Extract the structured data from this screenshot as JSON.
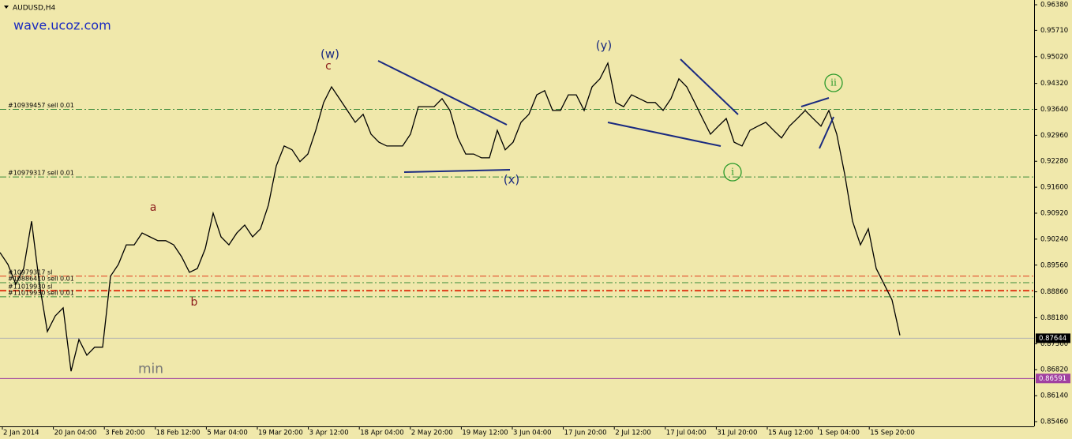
{
  "window": {
    "title": "AUDUSD,H4",
    "watermark": "wave.ucoz.com"
  },
  "chart_data": {
    "type": "line",
    "color": "#000000",
    "values": [
      0.8989,
      0.8958,
      0.8906,
      0.8947,
      0.9071,
      0.8906,
      0.8782,
      0.8823,
      0.8844,
      0.8678,
      0.8761,
      0.872,
      0.8741,
      0.8741,
      0.8927,
      0.8958,
      0.9009,
      0.9009,
      0.904,
      0.903,
      0.902,
      0.902,
      0.9009,
      0.8978,
      0.8937,
      0.8947,
      0.8999,
      0.9092,
      0.903,
      0.9009,
      0.904,
      0.9061,
      0.903,
      0.9051,
      0.9113,
      0.9216,
      0.9268,
      0.9258,
      0.9227,
      0.9247,
      0.9309,
      0.9382,
      0.9423,
      0.9392,
      0.9361,
      0.933,
      0.9351,
      0.9299,
      0.9278,
      0.9268,
      0.9268,
      0.9268,
      0.9299,
      0.9371,
      0.9371,
      0.9371,
      0.9392,
      0.9361,
      0.9289,
      0.9247,
      0.9247,
      0.9237,
      0.9237,
      0.9309,
      0.9258,
      0.9278,
      0.933,
      0.9351,
      0.9402,
      0.9413,
      0.9361,
      0.9361,
      0.9402,
      0.9402,
      0.9361,
      0.9423,
      0.9444,
      0.9485,
      0.9382,
      0.9371,
      0.9402,
      0.9392,
      0.9382,
      0.9382,
      0.9361,
      0.9392,
      0.9444,
      0.9423,
      0.9382,
      0.934,
      0.9299,
      0.932,
      0.934,
      0.9278,
      0.9268,
      0.9309,
      0.932,
      0.933,
      0.9309,
      0.9289,
      0.932,
      0.934,
      0.9361,
      0.934,
      0.932,
      0.9361,
      0.9299,
      0.9195,
      0.9071,
      0.9009,
      0.9051,
      0.8947,
      0.8906,
      0.8865,
      0.8772
    ],
    "ylim": [
      0.8546,
      0.9638
    ],
    "yticks": [
      {
        "value": 0.9638,
        "label": "0.96380"
      },
      {
        "value": 0.9571,
        "label": "0.95710"
      },
      {
        "value": 0.9502,
        "label": "0.95020"
      },
      {
        "value": 0.9432,
        "label": "0.94320"
      },
      {
        "value": 0.9364,
        "label": "0.93640"
      },
      {
        "value": 0.9296,
        "label": "0.92960"
      },
      {
        "value": 0.9228,
        "label": "0.92280"
      },
      {
        "value": 0.916,
        "label": "0.91600"
      },
      {
        "value": 0.9092,
        "label": "0.90920"
      },
      {
        "value": 0.9024,
        "label": "0.90240"
      },
      {
        "value": 0.8956,
        "label": "0.89560"
      },
      {
        "value": 0.8886,
        "label": "0.88860"
      },
      {
        "value": 0.8818,
        "label": "0.88180"
      },
      {
        "value": 0.875,
        "label": "0.87500"
      },
      {
        "value": 0.8682,
        "label": "0.86820"
      },
      {
        "value": 0.8614,
        "label": "0.86140"
      },
      {
        "value": 0.8546,
        "label": "0.85460"
      }
    ],
    "xtick_labels": [
      "2 Jan 2014",
      "20 Jan 04:00",
      "3 Feb 20:00",
      "18 Feb 12:00",
      "5 Mar 04:00",
      "19 Mar 20:00",
      "3 Apr 12:00",
      "18 Apr 04:00",
      "2 May 20:00",
      "19 May 12:00",
      "3 Jun 04:00",
      "17 Jun 20:00",
      "2 Jul 12:00",
      "17 Jul 04:00",
      "31 Jul 20:00",
      "15 Aug 12:00",
      "1 Sep 04:00",
      "15 Sep 20:00"
    ],
    "levels": [
      {
        "label": "#10939457 sell 0.01",
        "value": 0.9364,
        "color": "#3a8a3a"
      },
      {
        "label": "#10979317 sell 0.01",
        "value": 0.9187,
        "color": "#3a8a3a"
      },
      {
        "label": "#10979317 sl",
        "value": 0.8927,
        "color": "#e03a1a"
      },
      {
        "label": "#10886410 sell 0.01",
        "value": 0.891,
        "color": "#3a8a3a"
      },
      {
        "label": "#11019930 sl",
        "value": 0.8889,
        "color": "#e03a1a"
      },
      {
        "label": "#11019930 sell 0.01",
        "value": 0.8873,
        "color": "#3a8a3a"
      }
    ],
    "current_price": {
      "value": 0.87644,
      "label": "0.87644",
      "color": "#000000"
    },
    "min_price": {
      "value": 0.86591,
      "label": "0.86591",
      "text": "min",
      "color": "#a040a0"
    },
    "annotations": [
      {
        "text": "(w)",
        "color": "#1a2a80"
      },
      {
        "text": "c",
        "color": "#8b1a1a"
      },
      {
        "text": "(y)",
        "color": "#1a2a80"
      },
      {
        "text": "(x)",
        "color": "#1a2a80"
      },
      {
        "text": "a",
        "color": "#8b1a1a"
      },
      {
        "text": "b",
        "color": "#8b1a1a"
      },
      {
        "text": "i",
        "color": "#2a9a2a"
      },
      {
        "text": "ii",
        "color": "#2a9a2a"
      }
    ]
  }
}
